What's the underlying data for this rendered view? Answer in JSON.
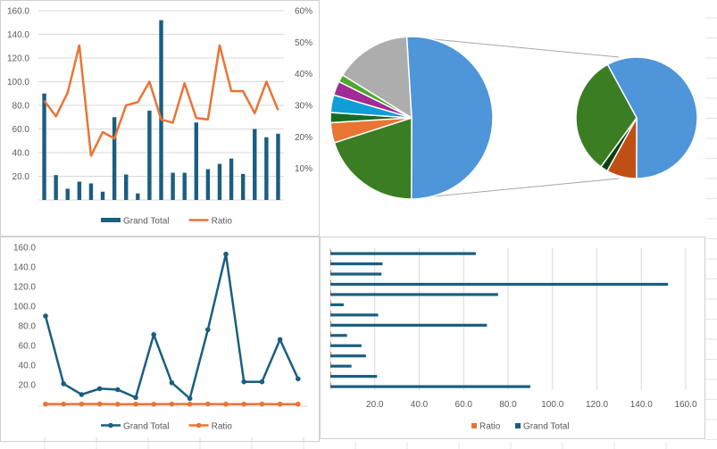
{
  "colors": {
    "navy": "#1a5e80",
    "orange": "#ea7434",
    "grid": "#d9d9d9",
    "panel_border": "#d0d0d0"
  },
  "chart_data": [
    {
      "type": "bar+line",
      "legend_placement": "bottom",
      "categories_count": 21,
      "series": [
        {
          "name": "Grand Total",
          "type": "bar",
          "axis": "left",
          "values": [
            90,
            21,
            9.5,
            15.5,
            14,
            7,
            70,
            21.5,
            5.5,
            75.5,
            152,
            23,
            23,
            65.5,
            26,
            30.5,
            35,
            22,
            60,
            53,
            56
          ]
        },
        {
          "name": "Ratio",
          "type": "line",
          "axis": "right",
          "values": [
            31.5,
            26.5,
            34,
            49,
            14,
            21.5,
            19.5,
            30,
            31,
            37.5,
            25.5,
            24.5,
            37,
            26,
            25.5,
            49,
            34.5,
            34.5,
            27.5,
            37.5,
            28.5
          ]
        }
      ],
      "ylim": [
        0,
        160
      ],
      "y_ticks": [
        "20.0",
        "40.0",
        "60.0",
        "80.0",
        "100.0",
        "120.0",
        "140.0",
        "160.0"
      ],
      "y2lim": [
        0,
        60
      ],
      "y2_ticks": [
        "10%",
        "20%",
        "30%",
        "40%",
        "50%",
        "60%"
      ],
      "grid": true
    },
    {
      "type": "pie-of-pie",
      "main_pie": [
        51,
        20,
        4,
        2,
        3.5,
        2.8,
        1.5,
        15.2
      ],
      "main_colors": [
        "#4e95d9",
        "#3b7d23",
        "#ea7434",
        "#196b24",
        "#0f9ed5",
        "#a02b93",
        "#4ea72e",
        "#adadad"
      ],
      "secondary_pie": [
        58,
        8,
        2,
        32
      ],
      "secondary_colors": [
        "#4e95d9",
        "#c04f15",
        "#0e3f14",
        "#3b7d23"
      ]
    },
    {
      "type": "line",
      "legend_placement": "bottom",
      "series": [
        {
          "name": "Grand Total",
          "values": [
            90,
            21,
            10,
            16,
            15,
            7,
            71,
            22,
            6,
            76,
            153,
            23,
            23,
            66,
            26
          ]
        },
        {
          "name": "Ratio",
          "values": [
            0.32,
            0.27,
            0.34,
            0.49,
            0.14,
            0.22,
            0.2,
            0.3,
            0.31,
            0.38,
            0.26,
            0.25,
            0.37,
            0.26,
            0.26
          ]
        }
      ],
      "ylim": [
        0,
        160
      ],
      "y_ticks": [
        "20.0",
        "40.0",
        "60.0",
        "80.0",
        "100.0",
        "120.0",
        "140.0",
        "160.0"
      ],
      "grid": false
    },
    {
      "type": "bar",
      "orientation": "horizontal",
      "legend_placement": "bottom",
      "legend": [
        "Ratio",
        "Grand Total"
      ],
      "series": [
        {
          "name": "Grand Total",
          "values": [
            90,
            21,
            9.5,
            16,
            14,
            7.5,
            70.5,
            21.5,
            6,
            75.5,
            152,
            23,
            23.5,
            65.5
          ]
        },
        {
          "name": "Ratio",
          "values": [
            0.32,
            0.27,
            0.34,
            0.49,
            0.14,
            0.22,
            0.2,
            0.3,
            0.31,
            0.38,
            0.26,
            0.25,
            0.37,
            0.26
          ]
        }
      ],
      "xlim": [
        0,
        160
      ],
      "x_ticks": [
        "20.0",
        "40.0",
        "60.0",
        "80.0",
        "100.0",
        "120.0",
        "140.0",
        "160.0"
      ],
      "grid": true
    }
  ]
}
